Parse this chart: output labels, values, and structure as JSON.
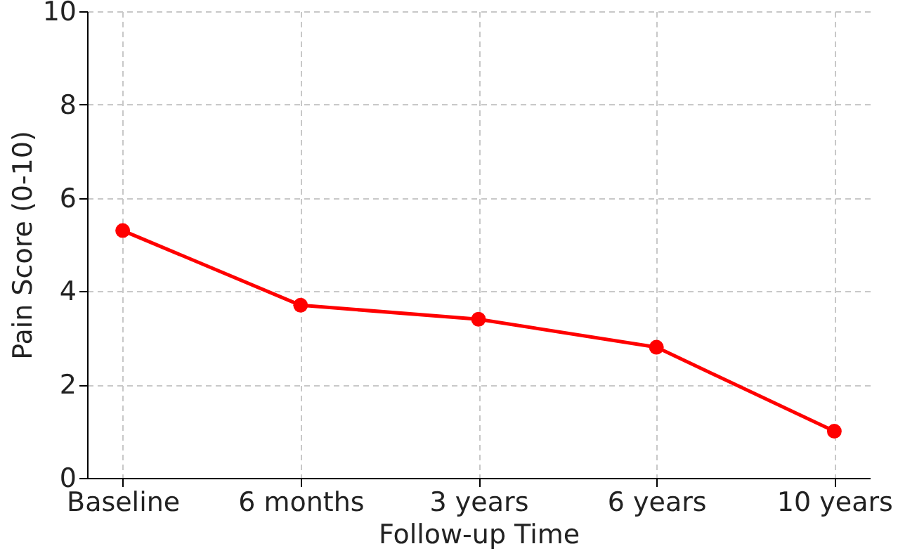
{
  "chart_data": {
    "type": "line",
    "xlabel": "Follow-up Time",
    "ylabel": "Pain Score (0-10)",
    "categories": [
      "Baseline",
      "6 months",
      "3 years",
      "6 years",
      "10 years"
    ],
    "series": [
      {
        "color": "#ff0000",
        "values": [
          5.3,
          3.7,
          3.4,
          2.8,
          1.0
        ]
      }
    ],
    "ylim": [
      0,
      10
    ],
    "yticks": [
      0,
      2,
      4,
      6,
      8,
      10
    ],
    "grid": true,
    "marker": "circle",
    "line_style": "solid"
  }
}
